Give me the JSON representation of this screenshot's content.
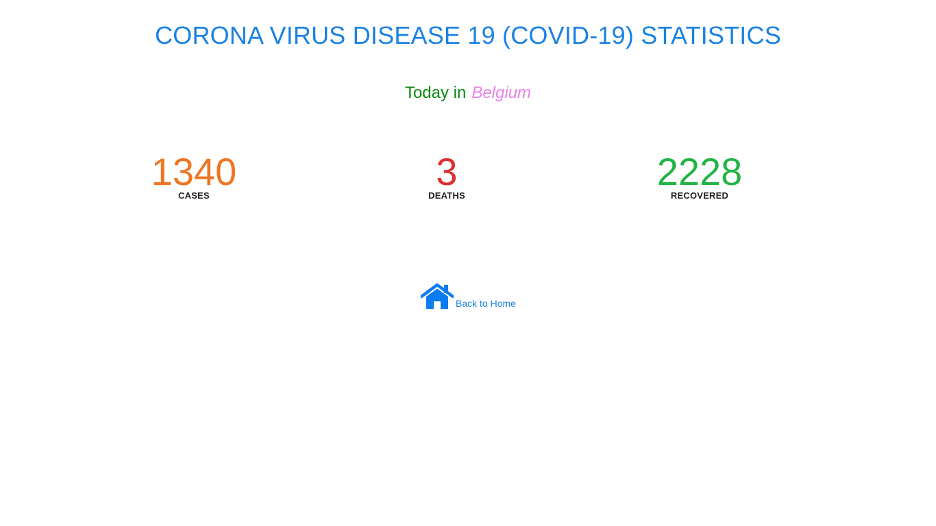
{
  "header": {
    "title": "CORONA VIRUS DISEASE 19 (COVID-19) STATISTICS"
  },
  "today": {
    "label": "Today in",
    "country": "Belgium"
  },
  "stats": {
    "cases": {
      "value": "1340",
      "label": "CASES",
      "color": "#ee7522"
    },
    "deaths": {
      "value": "3",
      "label": "DEATHS",
      "color": "#dc2f2f"
    },
    "recovered": {
      "value": "2228",
      "label": "RECOVERED",
      "color": "#22b444"
    }
  },
  "navigation": {
    "back_label": "Back to Home",
    "icon": "home-icon",
    "link_color": "#1a82e2"
  },
  "colors": {
    "title": "#1a82e2",
    "today_label": "#0b8a12",
    "country": "#e882e8"
  }
}
